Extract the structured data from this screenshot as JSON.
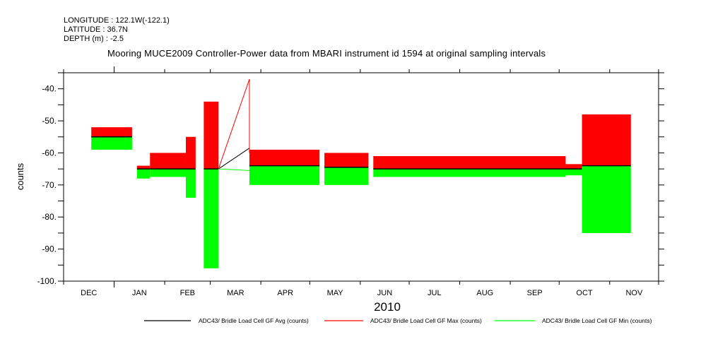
{
  "header": {
    "longitude": "LONGITUDE : 122.1W(-122.1)",
    "latitude": "LATITUDE : 36.7N",
    "depth": "DEPTH (m) : -2.5"
  },
  "chart_data": {
    "type": "line",
    "title": "Mooring MUCE2009 Controller-Power data from MBARI instrument id 1594 at original sampling intervals",
    "xlabel": "2010",
    "ylabel": "counts",
    "xlim": [
      "2009-12-01",
      "2010-12-01"
    ],
    "ylim": [
      -100,
      -35
    ],
    "x_tick_labels": [
      "DEC",
      "JAN",
      "FEB",
      "MAR",
      "APR",
      "MAY",
      "JUN",
      "JUL",
      "AUG",
      "SEP",
      "OCT",
      "NOV"
    ],
    "y_ticks": [
      -40,
      -50,
      -60,
      -70,
      -80,
      -90,
      -100
    ],
    "y_tick_labels": [
      "-40.",
      "-50.",
      "-60.",
      "-70.",
      "-80.",
      "-90.",
      "-100."
    ],
    "legend": {
      "placement": "bottom",
      "entries": [
        {
          "label": "ADC43/ Bridle Load Cell GF Avg (counts)",
          "color": "#000000"
        },
        {
          "label": "ADC43/ Bridle Load Cell GF Max (counts)",
          "color": "#ff0000"
        },
        {
          "label": "ADC43/ Bridle Load Cell GF Min (counts)",
          "color": "#00ff00"
        }
      ]
    },
    "segments": [
      {
        "start": "2009-12-18",
        "end": "2010-01-12",
        "max": -52,
        "avg": -55,
        "min": -59
      },
      {
        "start": "2010-01-15",
        "end": "2010-01-23",
        "max": -64,
        "avg": -65,
        "min": -68
      },
      {
        "start": "2010-01-23",
        "end": "2010-02-14",
        "max": -60,
        "avg": -65,
        "min": -67.5
      },
      {
        "start": "2010-02-14",
        "end": "2010-02-20",
        "max": -55,
        "avg": -65,
        "min": -74
      },
      {
        "start": "2010-02-25",
        "end": "2010-03-06",
        "max": -44,
        "avg": -65,
        "min": -96
      },
      {
        "start": "2010-03-25",
        "end": "2010-05-07",
        "max": -59,
        "avg": -64,
        "min": -70
      },
      {
        "start": "2010-05-10",
        "end": "2010-06-06",
        "max": -60,
        "avg": -64.5,
        "min": -70
      },
      {
        "start": "2010-06-09",
        "end": "2010-10-05",
        "max": -61,
        "avg": -65,
        "min": -67.5
      },
      {
        "start": "2010-10-05",
        "end": "2010-10-15",
        "max": -63.5,
        "avg": -65,
        "min": -67
      },
      {
        "start": "2010-10-15",
        "end": "2010-11-14",
        "max": -48,
        "avg": -64,
        "min": -85
      }
    ],
    "gap_lines": [
      {
        "series": "max",
        "from": [
          "2010-03-06",
          -65
        ],
        "to": [
          "2010-03-25",
          -37
        ]
      },
      {
        "series": "avg",
        "from": [
          "2010-03-06",
          -65
        ],
        "to": [
          "2010-03-25",
          -58.5
        ]
      },
      {
        "series": "min",
        "from": [
          "2010-03-06",
          -65
        ],
        "to": [
          "2010-03-25",
          -65.5
        ]
      }
    ]
  }
}
